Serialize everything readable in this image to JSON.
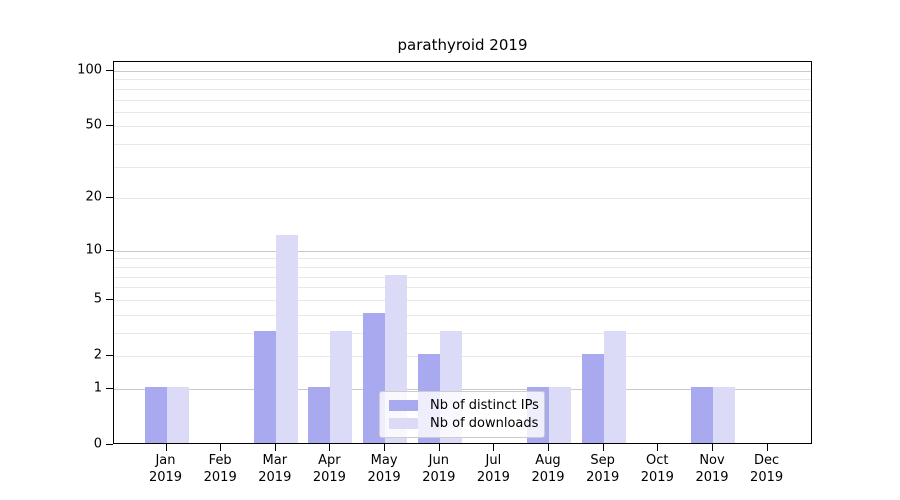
{
  "chart_data": {
    "type": "bar",
    "title": "parathyroid 2019",
    "categories": [
      "Jan",
      "Feb",
      "Mar",
      "Apr",
      "May",
      "Jun",
      "Jul",
      "Aug",
      "Sep",
      "Oct",
      "Nov",
      "Dec"
    ],
    "year_label": "2019",
    "series": [
      {
        "key": "distinct-ips",
        "name": "Nb of distinct IPs",
        "color": "#a9a9ef",
        "values": [
          1,
          0,
          3,
          1,
          4,
          2,
          0,
          1,
          2,
          0,
          1,
          0
        ]
      },
      {
        "key": "downloads",
        "name": "Nb of downloads",
        "color": "#dbdbf7",
        "values": [
          1,
          0,
          12,
          3,
          7,
          3,
          0,
          1,
          3,
          0,
          1,
          0
        ]
      }
    ],
    "yscale": "log1p",
    "ylim": [
      0,
      100
    ],
    "yticks": [
      0,
      1,
      2,
      5,
      10,
      20,
      50,
      100
    ],
    "grid_major": [
      1,
      10,
      100
    ],
    "grid_minor": [
      2,
      3,
      4,
      5,
      6,
      7,
      8,
      9,
      20,
      30,
      40,
      50,
      60,
      70,
      80,
      90
    ],
    "legend_position": "lower center-right",
    "xlabel": "",
    "ylabel": ""
  },
  "colors": {
    "spine": "#000000",
    "grid_major": "#c9c9c9",
    "grid_minor": "#e8e8e8",
    "background": "#ffffff"
  }
}
